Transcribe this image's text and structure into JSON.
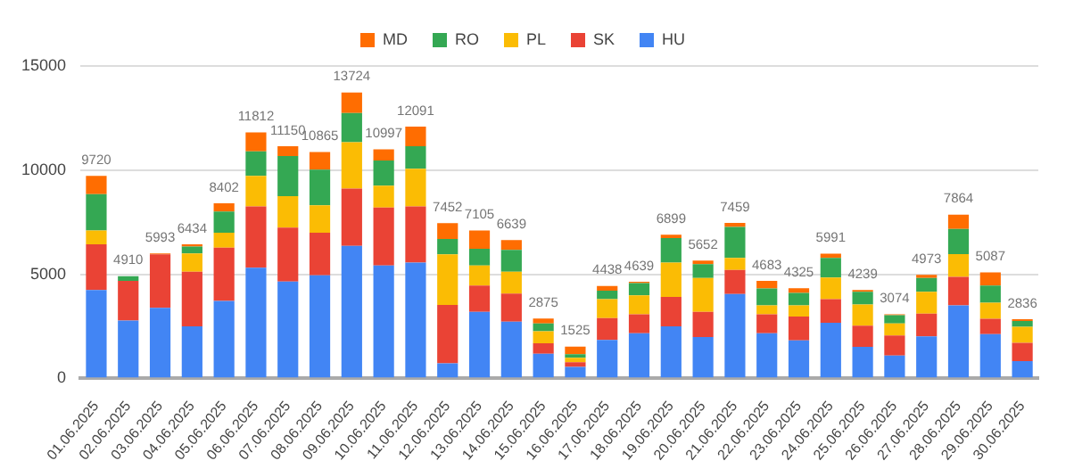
{
  "chart_data": {
    "type": "bar",
    "stacked": true,
    "categories": [
      "01.06.2025",
      "02.06.2025",
      "03.06.2025",
      "04.06.2025",
      "05.06.2025",
      "06.06.2025",
      "07.06.2025",
      "08.06.2025",
      "09.06.2025",
      "10.06.2025",
      "11.06.2025",
      "12.06.2025",
      "13.06.2025",
      "14.06.2025",
      "15.06.2025",
      "16.06.2025",
      "17.06.2025",
      "18.06.2025",
      "19.06.2025",
      "20.06.2025",
      "21.06.2025",
      "22.06.2025",
      "23.06.2025",
      "24.06.2025",
      "25.06.2025",
      "26.06.2025",
      "27.06.2025",
      "28.06.2025",
      "29.06.2025",
      "30.06.2025"
    ],
    "series": [
      {
        "name": "HU",
        "color": "#4285f4",
        "values": [
          4240,
          2780,
          3390,
          2500,
          3720,
          5310,
          4650,
          4950,
          6360,
          5420,
          5560,
          720,
          3190,
          2720,
          1180,
          550,
          1840,
          2170,
          2500,
          1980,
          4050,
          2170,
          1820,
          2670,
          1510,
          1100,
          2010,
          3500,
          2120,
          830
        ]
      },
      {
        "name": "SK",
        "color": "#ea4335",
        "values": [
          2200,
          1900,
          2560,
          2620,
          2560,
          2950,
          2590,
          2040,
          2750,
          2780,
          2700,
          2800,
          1270,
          1350,
          500,
          220,
          1050,
          910,
          1410,
          1210,
          1150,
          910,
          1150,
          1130,
          1020,
          960,
          1100,
          1370,
          740,
          880
        ]
      },
      {
        "name": "PL",
        "color": "#fbbc04",
        "values": [
          660,
          0,
          0,
          880,
          710,
          1460,
          1510,
          1320,
          2230,
          1050,
          1810,
          2430,
          960,
          1050,
          580,
          220,
          910,
          910,
          1650,
          1630,
          580,
          420,
          530,
          1040,
          1020,
          580,
          1050,
          1100,
          770,
          770
        ]
      },
      {
        "name": "RO",
        "color": "#34a853",
        "values": [
          1740,
          230,
          0,
          330,
          1020,
          1180,
          1930,
          1710,
          1400,
          1210,
          1080,
          740,
          800,
          1050,
          380,
          170,
          410,
          580,
          1180,
          660,
          1490,
          820,
          600,
          940,
          610,
          390,
          660,
          1210,
          830,
          270
        ]
      },
      {
        "name": "MD",
        "color": "#ff6d01",
        "values": [
          880,
          0,
          43,
          104,
          392,
          912,
          470,
          845,
          984,
          537,
          941,
          762,
          885,
          469,
          235,
          365,
          228,
          69,
          159,
          172,
          189,
          363,
          225,
          211,
          79,
          44,
          153,
          684,
          627,
          86
        ]
      }
    ],
    "totals": [
      "9720",
      "4910",
      "5993",
      "6434",
      "8402",
      "11812",
      "11150",
      "10865",
      "13724",
      "10997",
      "12091",
      "7452",
      "7105",
      "6639",
      "2875",
      "1525",
      "4438",
      "4639",
      "6899",
      "5652",
      "7459",
      "4683",
      "4325",
      "5991",
      "4239",
      "3074",
      "4973",
      "7864",
      "5087",
      "2836"
    ],
    "ylim": [
      0,
      15000
    ],
    "yticks": [
      0,
      5000,
      10000,
      15000
    ],
    "grid": "y",
    "legend": "top"
  }
}
